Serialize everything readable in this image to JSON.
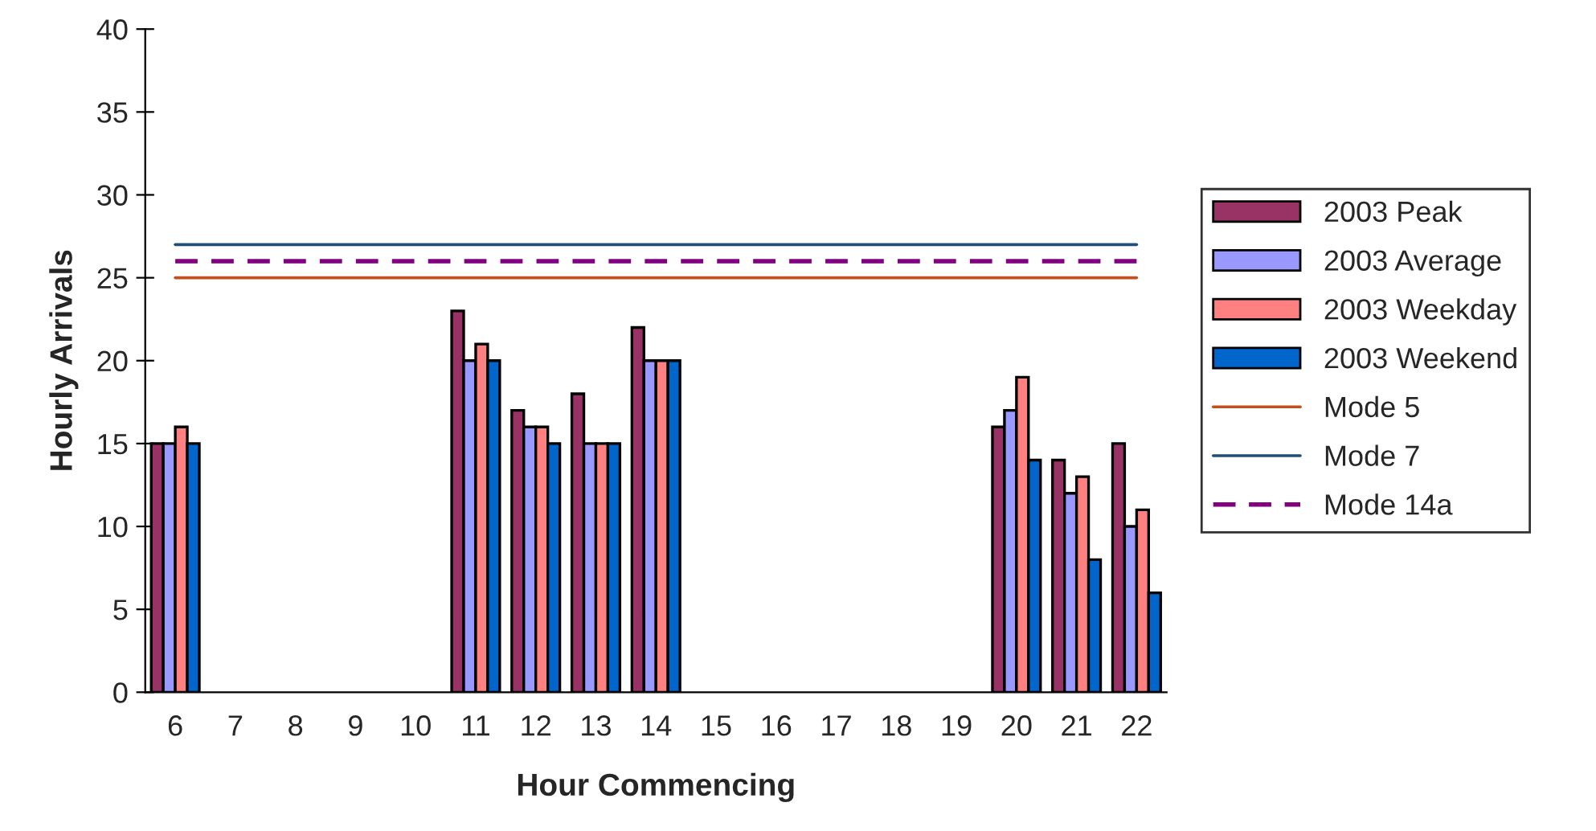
{
  "chart_data": {
    "type": "bar",
    "xlabel": "Hour Commencing",
    "ylabel": "Hourly Arrivals",
    "categories": [
      "6",
      "7",
      "8",
      "9",
      "10",
      "11",
      "12",
      "13",
      "14",
      "15",
      "16",
      "17",
      "18",
      "19",
      "20",
      "21",
      "22"
    ],
    "ylim": [
      0,
      40
    ],
    "yticks": [
      0,
      5,
      10,
      15,
      20,
      25,
      30,
      35,
      40
    ],
    "grid": false,
    "legend": "right",
    "marker": "none",
    "series": [
      {
        "name": "2003 Peak",
        "color": "#993366",
        "values": [
          15,
          null,
          null,
          null,
          null,
          23,
          17,
          18,
          22,
          null,
          null,
          null,
          null,
          null,
          16,
          14,
          15
        ]
      },
      {
        "name": "2003 Average",
        "color": "#9999ff",
        "values": [
          15,
          null,
          null,
          null,
          null,
          20,
          16,
          15,
          20,
          null,
          null,
          null,
          null,
          null,
          17,
          12,
          10
        ]
      },
      {
        "name": "2003 Weekday",
        "color": "#ff8080",
        "values": [
          16,
          null,
          null,
          null,
          null,
          21,
          16,
          15,
          20,
          null,
          null,
          null,
          null,
          null,
          19,
          13,
          11
        ]
      },
      {
        "name": "2003 Weekend",
        "color": "#0066cc",
        "values": [
          15,
          null,
          null,
          null,
          null,
          20,
          15,
          15,
          20,
          null,
          null,
          null,
          null,
          null,
          14,
          8,
          6
        ]
      },
      {
        "name": "Mode 5",
        "type": "line",
        "line_style": "solid",
        "color": "#c0501e",
        "values": [
          25,
          25,
          25,
          25,
          25,
          25,
          25,
          25,
          25,
          25,
          25,
          25,
          25,
          25,
          25,
          25,
          25
        ]
      },
      {
        "name": "Mode 7",
        "type": "line",
        "line_style": "solid",
        "color": "#1f4e79",
        "values": [
          27,
          27,
          27,
          27,
          27,
          27,
          27,
          27,
          27,
          27,
          27,
          27,
          27,
          27,
          27,
          27,
          27
        ]
      },
      {
        "name": "Mode 14a",
        "type": "line",
        "line_style": "dashed",
        "color": "#800080",
        "values": [
          26,
          26,
          26,
          26,
          26,
          26,
          26,
          26,
          26,
          26,
          26,
          26,
          26,
          26,
          26,
          26,
          26
        ]
      }
    ]
  }
}
